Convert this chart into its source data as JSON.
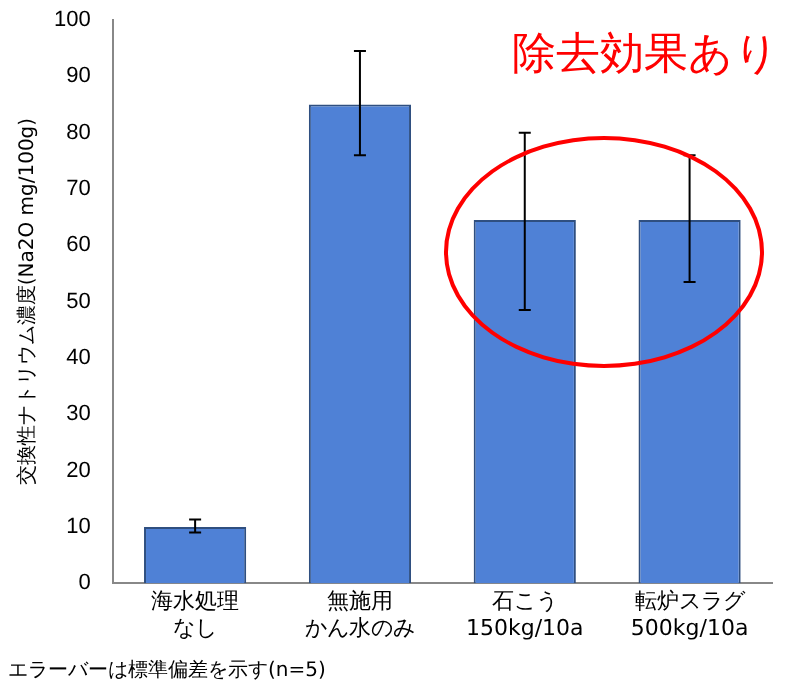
{
  "chart_data": {
    "type": "bar",
    "ylabel": "交換性ナトリウム濃度(Na2O mg/100g)",
    "categories": [
      "海水処理なし",
      "無施用かん水のみ",
      "石こう\n150kg/10a",
      "転炉スラグ\n500kg/10a"
    ],
    "values": [
      10,
      85,
      64.5,
      64.5
    ],
    "errors": [
      [
        9,
        11.3
      ],
      [
        76,
        94.5
      ],
      [
        48.5,
        80
      ],
      [
        53.5,
        76
      ]
    ],
    "color": "#4f81d6",
    "ylim": [
      0,
      100
    ],
    "yticks": [
      0,
      10,
      20,
      30,
      40,
      50,
      60,
      70,
      80,
      90,
      100
    ],
    "grid": false,
    "legend": false,
    "annotations": [
      "除去効果あり",
      "エラーバーは標準偏差を示す(n=5)"
    ]
  }
}
